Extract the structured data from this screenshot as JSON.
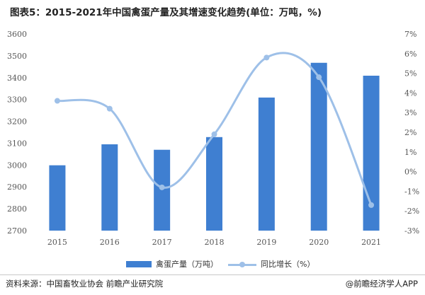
{
  "title": "图表5：2015-2021年中国禽蛋产量及其增速变化趋势(单位：万吨，%)",
  "legend": {
    "bar_label": "禽蛋产量（万吨）",
    "line_label": "同比增长（%）"
  },
  "footer": {
    "source": "资料来源：中国畜牧业协会 前瞻产业研究院",
    "brand": "@前瞻经济学人APP"
  },
  "colors": {
    "bar": "#3f7fd1",
    "line": "#9ec0e8",
    "axis_text": "#555555"
  },
  "chart_data": {
    "type": "bar",
    "categories": [
      "2015",
      "2016",
      "2017",
      "2018",
      "2019",
      "2020",
      "2021"
    ],
    "series": [
      {
        "name": "禽蛋产量（万吨）",
        "type": "bar",
        "axis": "left",
        "values": [
          2999,
          3095,
          3070,
          3128,
          3309,
          3468,
          3409
        ]
      },
      {
        "name": "同比增长（%）",
        "type": "line",
        "axis": "right",
        "smooth": true,
        "values": [
          3.6,
          3.2,
          -0.8,
          1.9,
          5.8,
          4.8,
          -1.7
        ]
      }
    ],
    "y_left": {
      "min": 2700,
      "max": 3600,
      "step": 100,
      "ticks": [
        "2700",
        "2800",
        "2900",
        "3000",
        "3100",
        "3200",
        "3300",
        "3400",
        "3500",
        "3600"
      ]
    },
    "y_right": {
      "min": -3,
      "max": 7,
      "step": 1,
      "ticks": [
        "-3%",
        "-2%",
        "-1%",
        "0%",
        "1%",
        "2%",
        "3%",
        "4%",
        "5%",
        "6%",
        "7%"
      ]
    },
    "grid": false,
    "legend_position": "bottom"
  }
}
